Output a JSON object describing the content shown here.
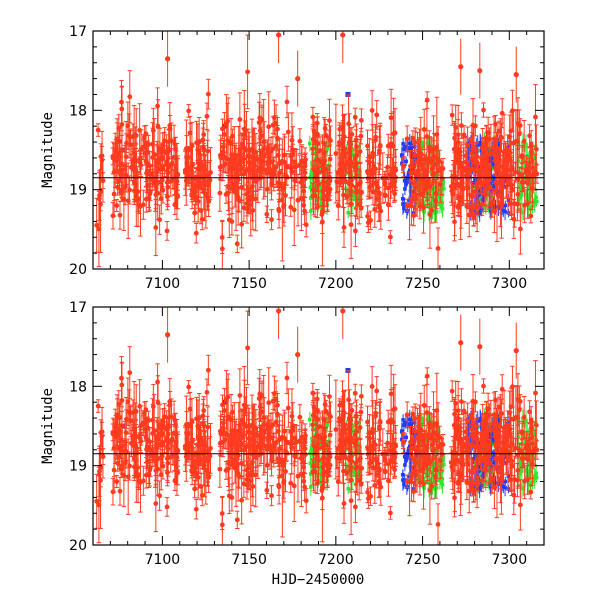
{
  "chart_data": [
    {
      "type": "scatter",
      "panel": "top",
      "xlabel": "",
      "ylabel": "Magnitude",
      "xlim": [
        7060,
        7320
      ],
      "ylim": [
        20,
        17
      ],
      "y_inverted": true,
      "xticks": [
        7100,
        7150,
        7200,
        7250,
        7300
      ],
      "yticks": [
        17,
        18,
        19,
        20
      ],
      "reference_line_y": 18.85,
      "series": [
        {
          "name": "red",
          "color": "#ff3b1f",
          "marker": "circle",
          "error_bars": true,
          "approx_count": 900,
          "x_range": [
            7062,
            7316
          ],
          "center_mag": 18.75,
          "scatter_sigma": 0.32,
          "outliers": [
            [
              7103,
              17.35
            ],
            [
              7167,
              17.05
            ],
            [
              7204,
              17.05
            ],
            [
              7272,
              17.45
            ],
            [
              7283,
              17.5
            ],
            [
              7304,
              17.55
            ],
            [
              7178,
              17.6
            ]
          ]
        },
        {
          "name": "green",
          "color": "#2ee82e",
          "marker": "square",
          "error_bars": true,
          "blocks": [
            [
              7185,
              7196
            ],
            [
              7206,
              7214
            ],
            [
              7247,
              7262
            ],
            [
              7280,
              7292
            ],
            [
              7305,
              7316
            ]
          ],
          "mag_range": [
            18.4,
            19.3
          ]
        },
        {
          "name": "blue",
          "color": "#1f3cff",
          "marker": "square",
          "error_bars": true,
          "blocks": [
            [
              7238,
              7246
            ],
            [
              7276,
              7300
            ]
          ],
          "mag_range": [
            18.4,
            19.3
          ],
          "points": [
            [
              7207,
              17.8
            ],
            [
              7136,
              18.2
            ],
            [
              7077,
              18.5
            ]
          ]
        }
      ]
    },
    {
      "type": "scatter",
      "panel": "bottom",
      "xlabel": "HJD−2450000",
      "ylabel": "Magnitude",
      "xlim": [
        7060,
        7320
      ],
      "ylim": [
        20,
        17
      ],
      "y_inverted": true,
      "xticks": [
        7100,
        7150,
        7200,
        7250,
        7300
      ],
      "yticks": [
        17,
        18,
        19,
        20
      ],
      "reference_line_y": 18.85,
      "series": [
        {
          "name": "red",
          "color": "#ff3b1f",
          "marker": "circle",
          "error_bars": true,
          "approx_count": 900,
          "x_range": [
            7062,
            7316
          ],
          "center_mag": 18.75,
          "scatter_sigma": 0.32,
          "outliers": [
            [
              7103,
              17.35
            ],
            [
              7167,
              17.05
            ],
            [
              7204,
              17.05
            ],
            [
              7272,
              17.45
            ],
            [
              7283,
              17.5
            ],
            [
              7304,
              17.55
            ],
            [
              7178,
              17.6
            ]
          ]
        },
        {
          "name": "green",
          "color": "#2ee82e",
          "marker": "square",
          "error_bars": true,
          "blocks": [
            [
              7185,
              7196
            ],
            [
              7206,
              7214
            ],
            [
              7247,
              7262
            ],
            [
              7280,
              7292
            ],
            [
              7305,
              7316
            ]
          ],
          "mag_range": [
            18.4,
            19.3
          ]
        },
        {
          "name": "blue",
          "color": "#1f3cff",
          "marker": "square",
          "error_bars": true,
          "blocks": [
            [
              7238,
              7246
            ],
            [
              7276,
              7300
            ]
          ],
          "mag_range": [
            18.4,
            19.3
          ],
          "points": [
            [
              7207,
              17.8
            ],
            [
              7136,
              18.2
            ],
            [
              7077,
              18.5
            ]
          ]
        }
      ]
    }
  ]
}
